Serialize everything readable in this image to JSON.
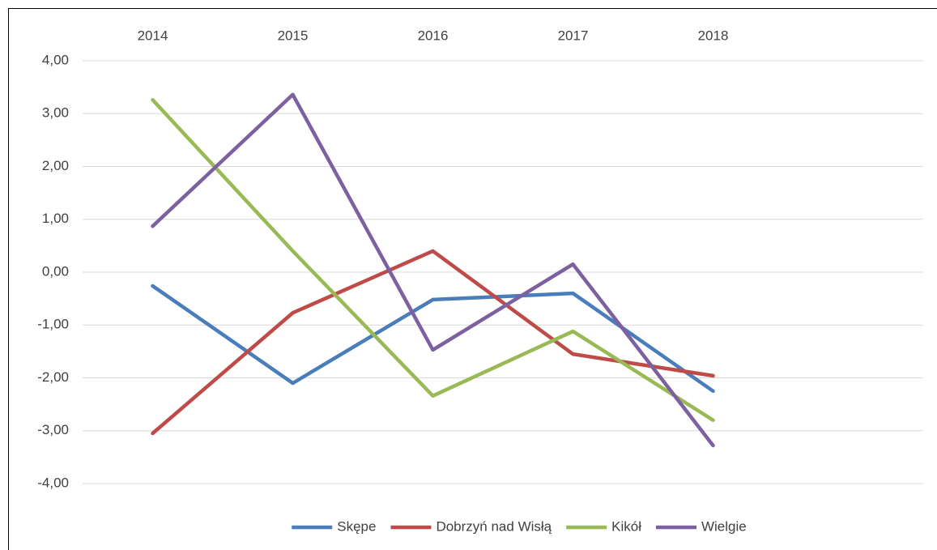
{
  "chart_data": {
    "type": "line",
    "categories": [
      "2014",
      "2015",
      "2016",
      "2017",
      "2018",
      null
    ],
    "series": [
      {
        "name": "Skępe",
        "color": "#4a7ebb",
        "values": [
          -0.26,
          -2.1,
          -0.52,
          -0.4,
          -2.25,
          null
        ]
      },
      {
        "name": "Dobrzyń nad Wisłą",
        "color": "#be4b48",
        "values": [
          -3.05,
          -0.77,
          0.4,
          -1.55,
          -1.96,
          null
        ]
      },
      {
        "name": "Kikół",
        "color": "#98b954",
        "values": [
          3.26,
          0.4,
          -2.34,
          -1.12,
          -2.8,
          null
        ]
      },
      {
        "name": "Wielgie",
        "color": "#7d60a0",
        "values": [
          0.87,
          3.36,
          -1.47,
          0.15,
          -3.28,
          null
        ]
      }
    ],
    "ylim": [
      -4,
      4
    ],
    "yticks": [
      {
        "value": -4,
        "label": "-4,00"
      },
      {
        "value": -3,
        "label": "-3,00"
      },
      {
        "value": -2,
        "label": "-2,00"
      },
      {
        "value": -1,
        "label": "-1,00"
      },
      {
        "value": 0,
        "label": "0,00"
      },
      {
        "value": 1,
        "label": "1,00"
      },
      {
        "value": 2,
        "label": "2,00"
      },
      {
        "value": 3,
        "label": "3,00"
      },
      {
        "value": 4,
        "label": "4,00"
      }
    ],
    "grid": true,
    "legend": "bottom"
  }
}
